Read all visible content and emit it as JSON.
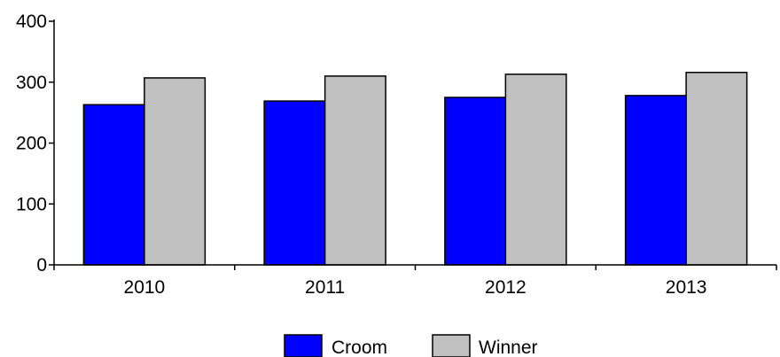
{
  "chart_data": {
    "type": "bar",
    "categories": [
      "2010",
      "2011",
      "2012",
      "2013"
    ],
    "series": [
      {
        "name": "Croom",
        "values": [
          263,
          269,
          275,
          278
        ],
        "color": "#0000ff"
      },
      {
        "name": "Winner",
        "values": [
          307,
          310,
          313,
          316
        ],
        "color": "#c0c0c0"
      }
    ],
    "title": "",
    "xlabel": "",
    "ylabel": "",
    "ylim": [
      0,
      400
    ],
    "yticks": [
      0,
      100,
      200,
      300,
      400
    ],
    "grid": false,
    "legend_position": "bottom-center"
  }
}
